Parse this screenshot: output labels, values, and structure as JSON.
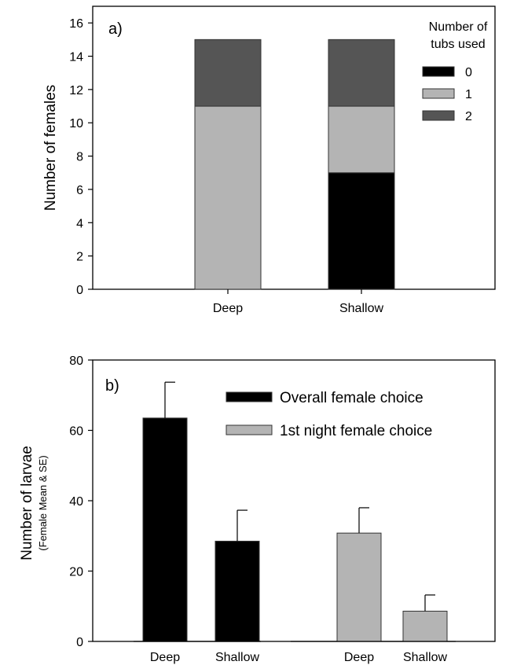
{
  "chart_data": [
    {
      "type": "bar",
      "stacked": true,
      "panel_label": "a)",
      "categories": [
        "Deep",
        "Shallow"
      ],
      "ylabel": "Number of females",
      "ylim": [
        0,
        17
      ],
      "yticks": [
        0,
        2,
        4,
        6,
        8,
        10,
        12,
        14,
        16
      ],
      "legend_title_line1": "Number of",
      "legend_title_line2": "tubs used",
      "legend_position": "top-right",
      "series": [
        {
          "name": "0",
          "color": "#000000",
          "values": [
            0,
            7
          ]
        },
        {
          "name": "1",
          "color": "#b4b4b4",
          "values": [
            11,
            4
          ]
        },
        {
          "name": "2",
          "color": "#555555",
          "values": [
            4,
            4
          ]
        }
      ]
    },
    {
      "type": "bar",
      "panel_label": "b)",
      "ylabel": "Number of larvae",
      "ylabel_sub": "(Female Mean & SE)",
      "ylim": [
        0,
        80
      ],
      "yticks": [
        0,
        20,
        40,
        60,
        80
      ],
      "legend_position": "top-right",
      "groups": [
        {
          "name": "Overall female choice",
          "color": "#000000",
          "categories": [
            "Deep",
            "Shallow"
          ],
          "values": [
            63.5,
            28.5
          ],
          "se": [
            10.2,
            8.8
          ]
        },
        {
          "name": "1st night female choice",
          "color": "#b4b4b4",
          "categories": [
            "Deep",
            "Shallow"
          ],
          "values": [
            30.8,
            8.6
          ],
          "se": [
            7.2,
            4.6
          ]
        }
      ]
    }
  ]
}
